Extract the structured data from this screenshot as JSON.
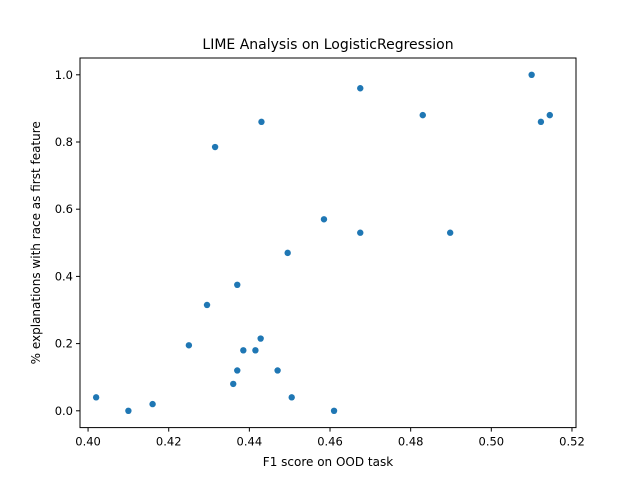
{
  "chart_data": {
    "type": "scatter",
    "title": "LIME Analysis on LogisticRegression",
    "xlabel": "F1 score on OOD task",
    "ylabel": "% explanations with race as first feature",
    "xlim": [
      0.398,
      0.521
    ],
    "ylim": [
      -0.05,
      1.05
    ],
    "xticks": [
      0.4,
      0.42,
      0.44,
      0.46,
      0.48,
      0.5,
      0.52
    ],
    "xtick_labels": [
      "0.40",
      "0.42",
      "0.44",
      "0.46",
      "0.48",
      "0.50",
      "0.52"
    ],
    "yticks": [
      0.0,
      0.2,
      0.4,
      0.6,
      0.8,
      1.0
    ],
    "ytick_labels": [
      "0.0",
      "0.2",
      "0.4",
      "0.6",
      "0.8",
      "1.0"
    ],
    "grid": false,
    "legend": "none",
    "color": "#1f77b4",
    "points": [
      {
        "x": 0.402,
        "y": 0.04
      },
      {
        "x": 0.41,
        "y": 0.0
      },
      {
        "x": 0.416,
        "y": 0.02
      },
      {
        "x": 0.425,
        "y": 0.195
      },
      {
        "x": 0.4295,
        "y": 0.315
      },
      {
        "x": 0.4315,
        "y": 0.785
      },
      {
        "x": 0.436,
        "y": 0.08
      },
      {
        "x": 0.437,
        "y": 0.12
      },
      {
        "x": 0.437,
        "y": 0.375
      },
      {
        "x": 0.4385,
        "y": 0.18
      },
      {
        "x": 0.4415,
        "y": 0.18
      },
      {
        "x": 0.4428,
        "y": 0.215
      },
      {
        "x": 0.443,
        "y": 0.86
      },
      {
        "x": 0.447,
        "y": 0.12
      },
      {
        "x": 0.4495,
        "y": 0.47
      },
      {
        "x": 0.4505,
        "y": 0.04
      },
      {
        "x": 0.4585,
        "y": 0.57
      },
      {
        "x": 0.461,
        "y": 0.0
      },
      {
        "x": 0.4675,
        "y": 0.96
      },
      {
        "x": 0.4675,
        "y": 0.53
      },
      {
        "x": 0.483,
        "y": 0.88
      },
      {
        "x": 0.4898,
        "y": 0.53
      },
      {
        "x": 0.51,
        "y": 1.0
      },
      {
        "x": 0.5123,
        "y": 0.86
      },
      {
        "x": 0.5145,
        "y": 0.88
      }
    ]
  }
}
